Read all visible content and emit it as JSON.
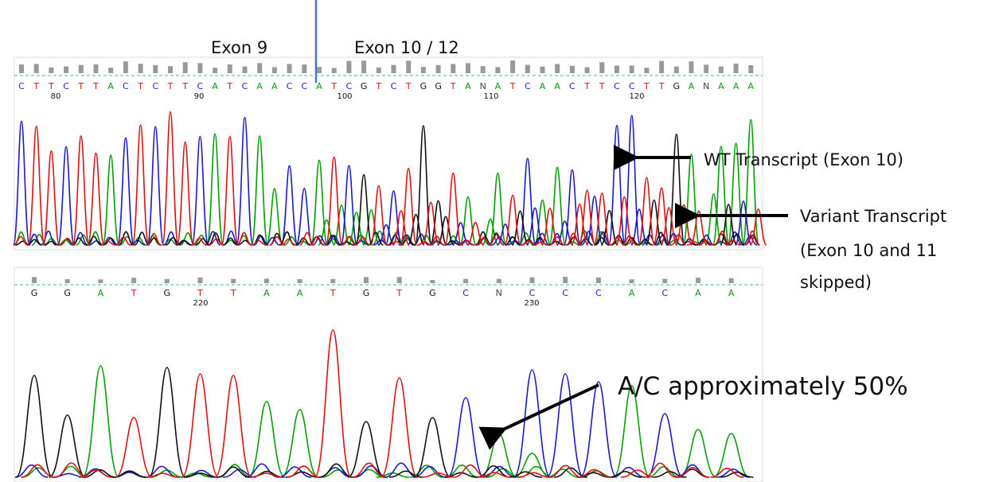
{
  "colors": {
    "A": "#00a000",
    "C": "#1a1acc",
    "G": "#111111",
    "T": "#e01010",
    "N": "#444444",
    "quality_bar": "#999999",
    "divider": "#4477cc",
    "dashed": "#33bbbb"
  },
  "labels": {
    "exon9": "Exon 9",
    "exon10_12": "Exon 10 / 12",
    "wt": "WT Transcript (Exon 10)",
    "variant_line1": "Variant Transcript",
    "variant_line2": "(Exon 10 and 11",
    "variant_line3": "skipped)",
    "ac": "A/C approximately 50%"
  },
  "top_trace": {
    "bases": "CTTCTTACTCTTCATCAACCATCGTCTGGTANATCAACTTCCTTGANAAA",
    "positions": [
      "80",
      "90",
      "100",
      "110",
      "120"
    ]
  },
  "bottom_trace": {
    "bases": "GGATGTTAATGTGCNCCCACAA",
    "positions": [
      "220",
      "230"
    ]
  }
}
